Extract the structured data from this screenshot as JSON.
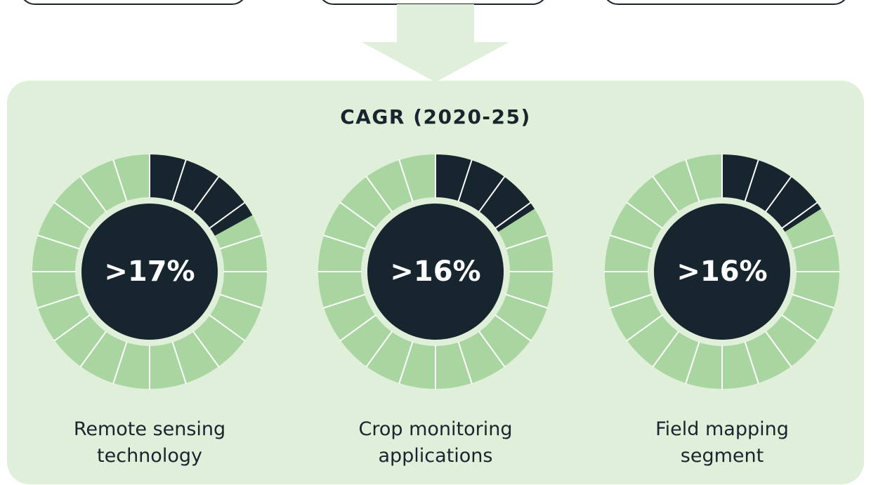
{
  "chart_data": {
    "type": "donut",
    "title": "CAGR (2020-25)",
    "categories": [
      "Remote sensing technology",
      "Crop monitoring applications",
      "Field mapping segment"
    ],
    "values": [
      17,
      16,
      16
    ],
    "value_labels": [
      ">17%",
      ">16%",
      ">16%"
    ],
    "color": "#17252f",
    "track_color": "#a9d5a0"
  }
}
